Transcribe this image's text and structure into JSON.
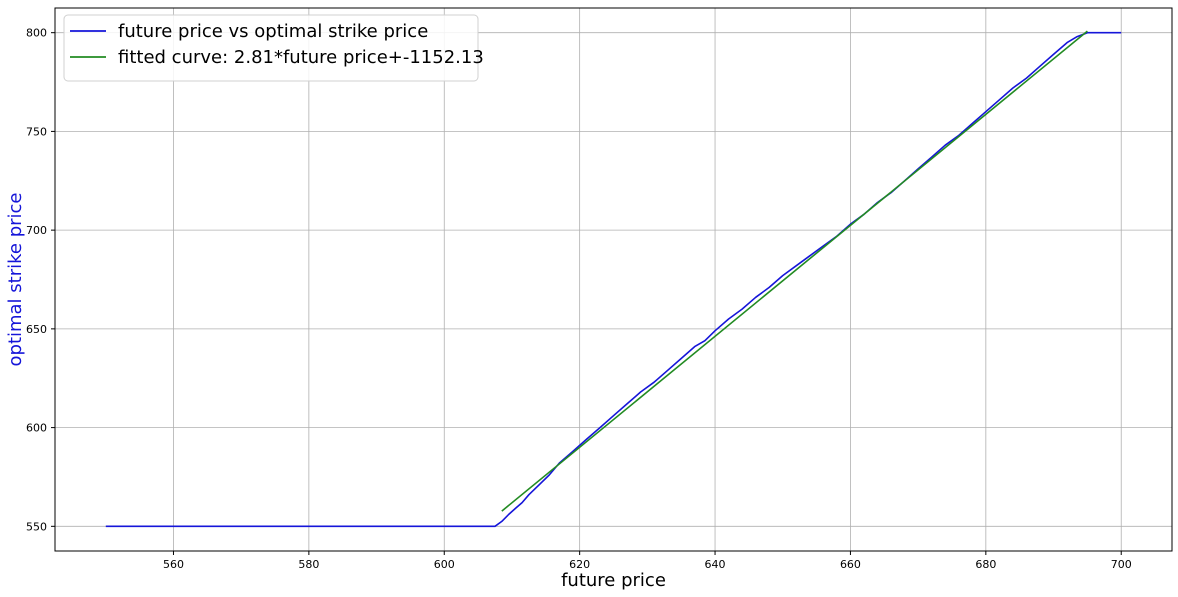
{
  "chart_data": {
    "type": "line",
    "title": "",
    "xlabel": "future price",
    "ylabel": "optimal strike price",
    "xlim": [
      542.5,
      707.5
    ],
    "ylim": [
      537.5,
      812.5
    ],
    "xticks": [
      560,
      580,
      600,
      620,
      640,
      660,
      680,
      700
    ],
    "yticks": [
      550,
      600,
      650,
      700,
      750,
      800
    ],
    "grid": true,
    "legend_position": "top-left",
    "series": [
      {
        "name": "future price vs optimal strike price",
        "color": "#1515d9",
        "x": [
          550,
          607.5,
          608.5,
          609.5,
          610.5,
          611.5,
          612.5,
          614,
          615.5,
          617,
          619,
          621,
          623,
          625,
          627,
          629,
          631,
          633,
          635,
          637,
          638.5,
          640,
          642,
          644,
          646,
          648,
          650,
          652,
          654,
          656,
          658,
          660,
          662,
          664,
          666,
          668,
          670,
          672,
          674,
          676,
          678,
          680,
          682,
          684,
          686,
          688,
          690,
          692,
          693.5,
          695,
          696,
          697,
          698,
          699,
          700
        ],
        "y": [
          550,
          550,
          552.5,
          556,
          559,
          562,
          566,
          571,
          576,
          582,
          588,
          594,
          600,
          606,
          612,
          618,
          623,
          629,
          635,
          641,
          644,
          649,
          655,
          660,
          666,
          671,
          677,
          682,
          687,
          692,
          697,
          703,
          708,
          714,
          719,
          725,
          731,
          737,
          743,
          748,
          754,
          760,
          766,
          772,
          777,
          783,
          789,
          795,
          798,
          800,
          800,
          800,
          800,
          800,
          800
        ]
      },
      {
        "name": "fitted curve: 2.81*future price+-1152.13",
        "color": "#228b22",
        "x": [
          608.5,
          695
        ],
        "y": [
          557.72,
          800.79
        ]
      }
    ]
  }
}
